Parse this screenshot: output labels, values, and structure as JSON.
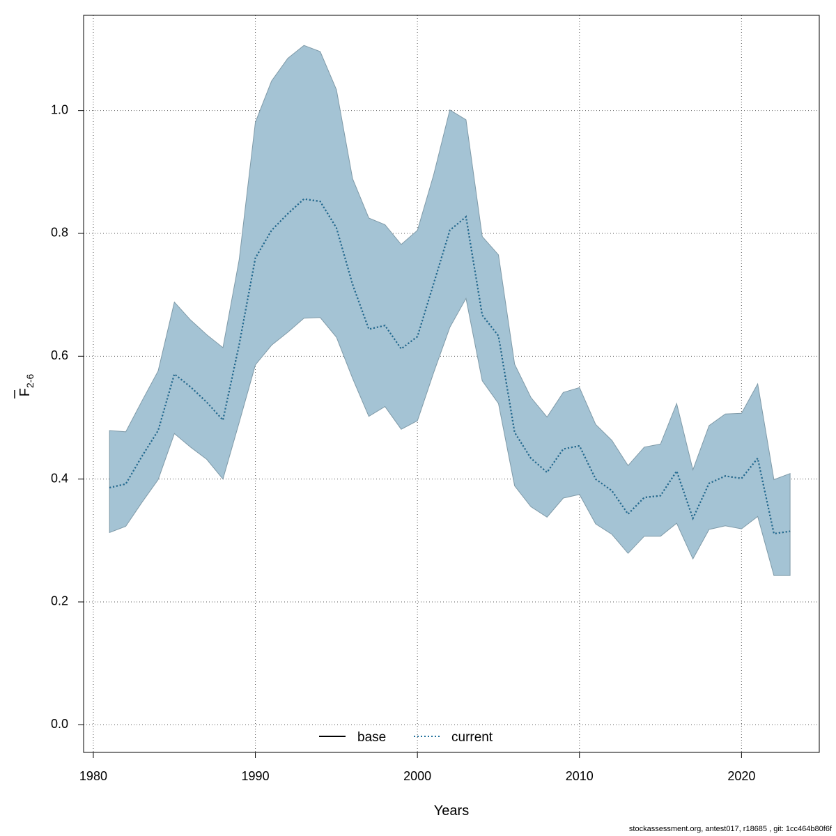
{
  "chart_data": {
    "type": "line",
    "xlabel": "Years",
    "ylabel_main": "F",
    "ylabel_sub": "2-6",
    "xlim": [
      1979.4,
      2024.8
    ],
    "ylim": [
      -0.045,
      1.155
    ],
    "x_ticks": [
      1980,
      1990,
      2000,
      2010,
      2020
    ],
    "y_ticks": [
      0.0,
      0.2,
      0.4,
      0.6,
      0.8,
      1.0
    ],
    "y_tick_labels": [
      "0.0",
      "0.2",
      "0.4",
      "0.6",
      "0.8",
      "1.0"
    ],
    "grid": true,
    "legend_position": "bottom-center",
    "legend": [
      {
        "label": "base",
        "style": "solid",
        "color": "#000000"
      },
      {
        "label": "current",
        "style": "dotted",
        "color": "#1f6f9a"
      }
    ],
    "x": [
      1981,
      1982,
      1983,
      1984,
      1985,
      1986,
      1987,
      1988,
      1989,
      1990,
      1991,
      1992,
      1993,
      1994,
      1995,
      1996,
      1997,
      1998,
      1999,
      2000,
      2001,
      2002,
      2003,
      2004,
      2005,
      2006,
      2007,
      2008,
      2009,
      2010,
      2011,
      2012,
      2013,
      2014,
      2015,
      2016,
      2017,
      2018,
      2019,
      2020,
      2021,
      2022,
      2023
    ],
    "series": [
      {
        "name": "base",
        "values": [
          0.386,
          0.392,
          0.437,
          0.479,
          0.571,
          0.55,
          0.525,
          0.496,
          0.619,
          0.76,
          0.805,
          0.832,
          0.856,
          0.852,
          0.809,
          0.717,
          0.644,
          0.65,
          0.612,
          0.632,
          0.718,
          0.805,
          0.827,
          0.667,
          0.633,
          0.476,
          0.434,
          0.411,
          0.449,
          0.454,
          0.4,
          0.381,
          0.343,
          0.37,
          0.373,
          0.413,
          0.336,
          0.393,
          0.405,
          0.401,
          0.434,
          0.311,
          0.315
        ]
      },
      {
        "name": "current",
        "values": [
          0.386,
          0.392,
          0.437,
          0.479,
          0.571,
          0.55,
          0.525,
          0.496,
          0.619,
          0.76,
          0.805,
          0.832,
          0.856,
          0.852,
          0.809,
          0.717,
          0.644,
          0.65,
          0.612,
          0.632,
          0.718,
          0.805,
          0.827,
          0.667,
          0.633,
          0.476,
          0.434,
          0.411,
          0.449,
          0.454,
          0.4,
          0.381,
          0.343,
          0.37,
          0.373,
          0.413,
          0.336,
          0.393,
          0.405,
          0.401,
          0.434,
          0.311,
          0.315
        ]
      }
    ],
    "ci_band": {
      "color": "#a4c3d4",
      "lower": [
        0.313,
        0.323,
        0.362,
        0.399,
        0.474,
        0.452,
        0.432,
        0.4,
        0.492,
        0.586,
        0.618,
        0.639,
        0.662,
        0.663,
        0.631,
        0.564,
        0.502,
        0.518,
        0.481,
        0.495,
        0.573,
        0.647,
        0.694,
        0.56,
        0.523,
        0.389,
        0.355,
        0.338,
        0.369,
        0.375,
        0.327,
        0.31,
        0.279,
        0.307,
        0.307,
        0.328,
        0.27,
        0.318,
        0.324,
        0.319,
        0.339,
        0.243,
        0.243
      ],
      "upper": [
        0.479,
        0.477,
        0.527,
        0.576,
        0.688,
        0.659,
        0.635,
        0.614,
        0.757,
        0.981,
        1.048,
        1.085,
        1.106,
        1.096,
        1.034,
        0.889,
        0.825,
        0.814,
        0.782,
        0.805,
        0.895,
        1.001,
        0.985,
        0.795,
        0.765,
        0.587,
        0.533,
        0.501,
        0.541,
        0.549,
        0.489,
        0.463,
        0.422,
        0.452,
        0.457,
        0.523,
        0.415,
        0.487,
        0.506,
        0.507,
        0.555,
        0.399,
        0.409
      ]
    }
  },
  "footer": "stockassessment.org, antest017, r18685 , git: 1cc464b80f6f"
}
